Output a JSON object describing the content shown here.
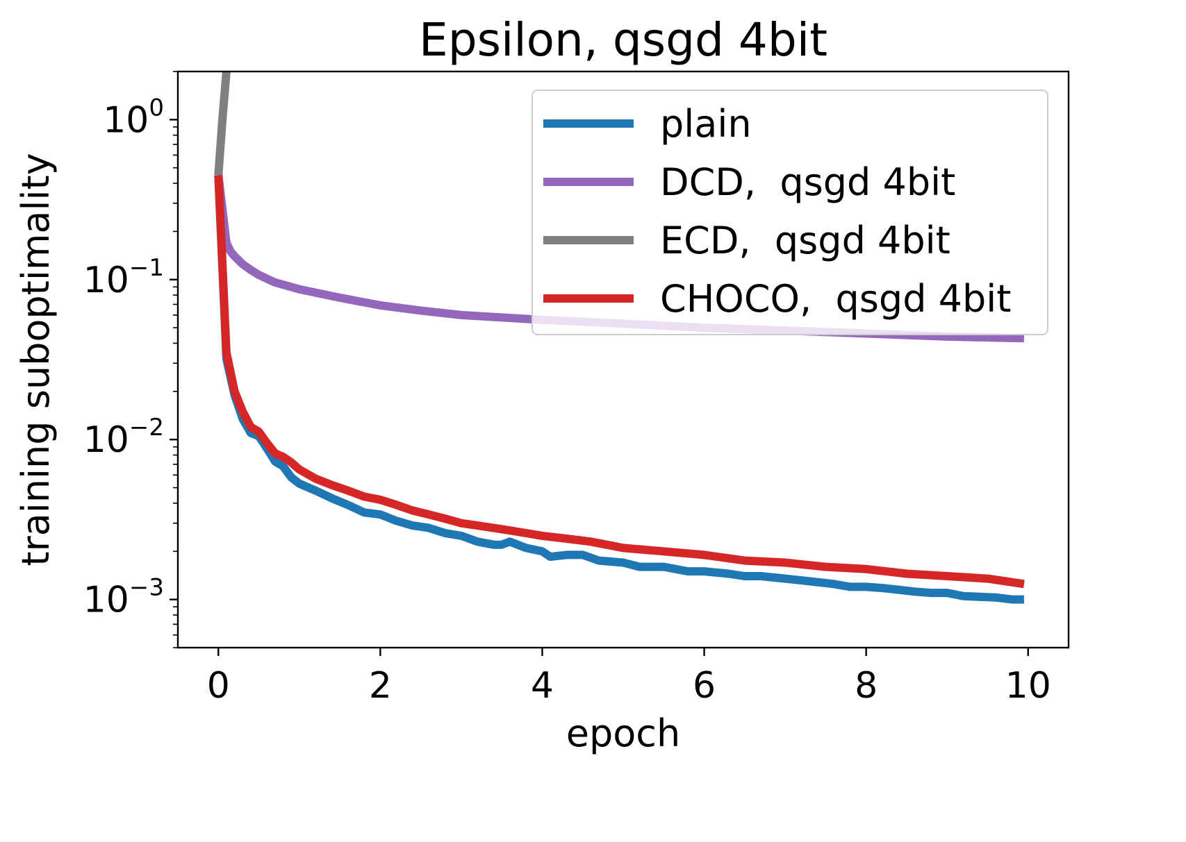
{
  "chart_data": {
    "type": "line",
    "title": "Epsilon, qsgd 4bit",
    "xlabel": "epoch",
    "ylabel": "training suboptimality",
    "xlim": [
      -0.5,
      10.5
    ],
    "ylim": [
      0.0005,
      2.0
    ],
    "yscale": "log",
    "grid": false,
    "legend_position": "upper right",
    "x_ticks": [
      {
        "value": 0,
        "label": "0"
      },
      {
        "value": 2,
        "label": "2"
      },
      {
        "value": 4,
        "label": "4"
      },
      {
        "value": 6,
        "label": "6"
      },
      {
        "value": 8,
        "label": "8"
      },
      {
        "value": 10,
        "label": "10"
      }
    ],
    "y_ticks": [
      {
        "value": 1,
        "base": "10",
        "exp": "0"
      },
      {
        "value": 0.1,
        "base": "10",
        "exp": "−1"
      },
      {
        "value": 0.01,
        "base": "10",
        "exp": "−2"
      },
      {
        "value": 0.001,
        "base": "10",
        "exp": "−3"
      }
    ],
    "series": [
      {
        "name": "plain",
        "color": "#1f77b4",
        "x": [
          0.0,
          0.1,
          0.2,
          0.3,
          0.4,
          0.5,
          0.6,
          0.7,
          0.8,
          0.9,
          1.0,
          1.2,
          1.4,
          1.6,
          1.8,
          2.0,
          2.2,
          2.4,
          2.6,
          2.8,
          3.0,
          3.2,
          3.4,
          3.5,
          3.6,
          3.8,
          4.0,
          4.1,
          4.3,
          4.5,
          4.7,
          5.0,
          5.2,
          5.5,
          5.8,
          6.0,
          6.3,
          6.5,
          6.7,
          7.0,
          7.3,
          7.6,
          7.8,
          8.0,
          8.2,
          8.4,
          8.6,
          8.8,
          9.0,
          9.2,
          9.4,
          9.6,
          9.8,
          9.95
        ],
        "y": [
          0.45,
          0.032,
          0.019,
          0.0135,
          0.011,
          0.0105,
          0.0088,
          0.0073,
          0.0068,
          0.0058,
          0.0053,
          0.0048,
          0.0043,
          0.0039,
          0.0035,
          0.0034,
          0.0031,
          0.0029,
          0.0028,
          0.0026,
          0.0025,
          0.0023,
          0.0022,
          0.0022,
          0.0023,
          0.0021,
          0.002,
          0.00185,
          0.0019,
          0.0019,
          0.00175,
          0.0017,
          0.0016,
          0.0016,
          0.0015,
          0.0015,
          0.00145,
          0.0014,
          0.0014,
          0.00135,
          0.0013,
          0.00125,
          0.0012,
          0.0012,
          0.00118,
          0.00115,
          0.00112,
          0.0011,
          0.0011,
          0.00105,
          0.00104,
          0.00103,
          0.001,
          0.001
        ]
      },
      {
        "name": "DCD,  qsgd 4bit",
        "color": "#9467bd",
        "x": [
          0.0,
          0.1,
          0.15,
          0.2,
          0.3,
          0.4,
          0.5,
          0.7,
          1.0,
          1.5,
          2.0,
          2.5,
          3.0,
          4.0,
          5.0,
          6.0,
          7.0,
          8.0,
          9.0,
          9.95
        ],
        "y": [
          0.45,
          0.17,
          0.15,
          0.14,
          0.125,
          0.115,
          0.107,
          0.096,
          0.087,
          0.077,
          0.069,
          0.064,
          0.06,
          0.056,
          0.053,
          0.05,
          0.048,
          0.046,
          0.044,
          0.043
        ]
      },
      {
        "name": "ECD,  qsgd 4bit",
        "color": "#7f7f7f",
        "x": [
          0.0,
          0.05,
          0.1,
          0.15
        ],
        "y": [
          0.45,
          1.0,
          2.0,
          4.0
        ]
      },
      {
        "name": "CHOCO,  qsgd 4bit",
        "color": "#d62728",
        "x": [
          0.0,
          0.1,
          0.2,
          0.3,
          0.4,
          0.5,
          0.6,
          0.7,
          0.8,
          0.9,
          1.0,
          1.2,
          1.4,
          1.6,
          1.8,
          2.0,
          2.2,
          2.4,
          2.6,
          2.8,
          3.0,
          3.2,
          3.4,
          3.6,
          3.8,
          4.0,
          4.3,
          4.6,
          5.0,
          5.5,
          6.0,
          6.5,
          7.0,
          7.5,
          8.0,
          8.5,
          9.0,
          9.5,
          9.95
        ],
        "y": [
          0.45,
          0.035,
          0.02,
          0.015,
          0.012,
          0.0112,
          0.0095,
          0.0082,
          0.0078,
          0.0072,
          0.0065,
          0.0057,
          0.0052,
          0.0048,
          0.0044,
          0.0042,
          0.0039,
          0.0036,
          0.0034,
          0.0032,
          0.003,
          0.0029,
          0.0028,
          0.0027,
          0.0026,
          0.0025,
          0.0024,
          0.0023,
          0.0021,
          0.002,
          0.0019,
          0.00175,
          0.0017,
          0.0016,
          0.00155,
          0.00145,
          0.0014,
          0.00135,
          0.00125
        ]
      }
    ]
  }
}
